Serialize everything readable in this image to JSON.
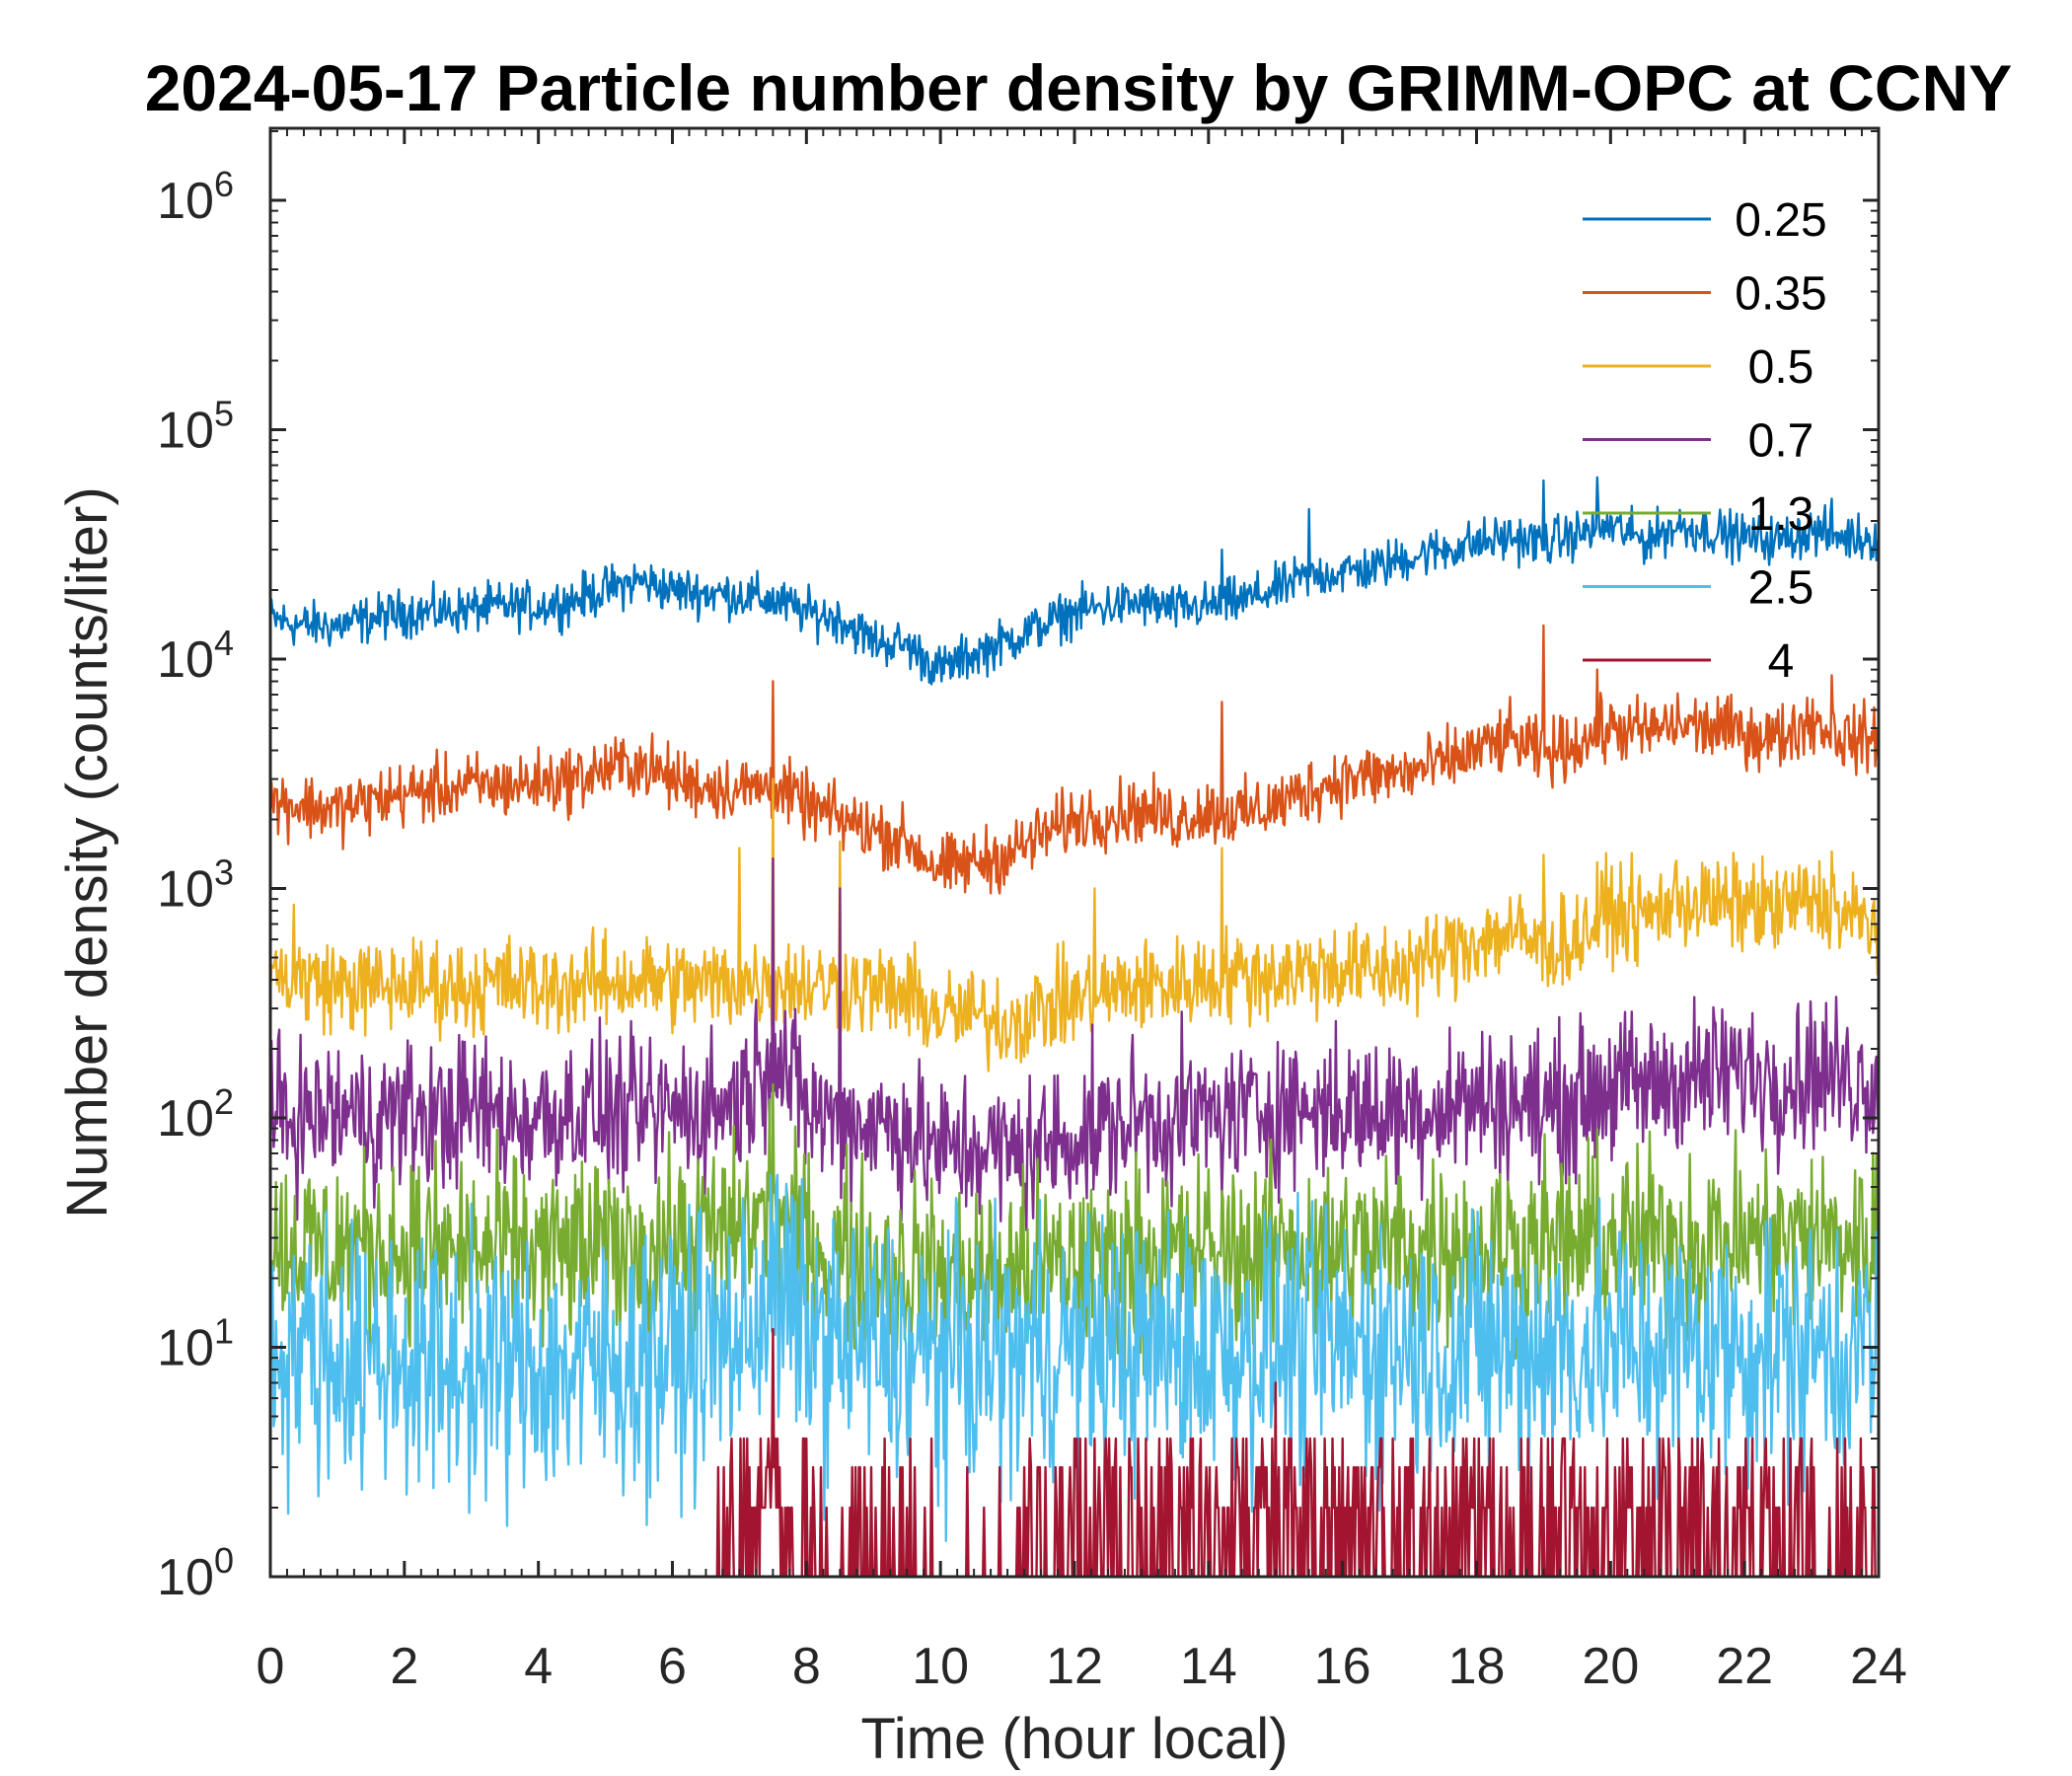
{
  "chart_data": {
    "type": "line",
    "title": "2024-05-17 Particle number density by GRIMM-OPC at CCNY",
    "xlabel": "Time (hour local)",
    "ylabel": "Number density (counts/liter)",
    "xscale": "linear",
    "yscale": "log",
    "xlim": [
      0,
      24
    ],
    "ylim": [
      1,
      2000000
    ],
    "xticks": [
      0,
      2,
      4,
      6,
      8,
      10,
      12,
      14,
      16,
      18,
      20,
      22,
      24
    ],
    "xtick_labels": [
      "0",
      "2",
      "4",
      "6",
      "8",
      "10",
      "12",
      "14",
      "16",
      "18",
      "20",
      "22",
      "24"
    ],
    "yticks": [
      1,
      10,
      100,
      1000,
      10000,
      100000,
      1000000
    ],
    "ytick_exponents": [
      "0",
      "1",
      "2",
      "3",
      "4",
      "5",
      "6"
    ],
    "ytick_base": "10",
    "grid": false,
    "legend_position": "top-right",
    "x": [
      0,
      0.5,
      1,
      1.5,
      2,
      2.5,
      3,
      3.5,
      4,
      4.5,
      5,
      5.5,
      6,
      6.5,
      7,
      7.5,
      8,
      8.5,
      9,
      9.5,
      10,
      10.5,
      11,
      11.5,
      12,
      12.5,
      13,
      13.5,
      14,
      14.5,
      15,
      15.5,
      16,
      16.5,
      17,
      17.5,
      18,
      18.5,
      19,
      19.5,
      20,
      20.5,
      21,
      21.5,
      22,
      22.5,
      23,
      23.5,
      24
    ],
    "series": [
      {
        "name": "0.25",
        "color": "#0072BD",
        "noise": 0.05,
        "spikes": [
          [
            14.2,
            30000
          ],
          [
            15.5,
            45000
          ],
          [
            19,
            60000
          ],
          [
            19.8,
            62000
          ],
          [
            23.3,
            50000
          ]
        ],
        "values": [
          15000,
          14000,
          14000,
          15000,
          16000,
          16000,
          16500,
          17000,
          17000,
          18000,
          20000,
          22000,
          20000,
          19500,
          19000,
          18000,
          16000,
          15000,
          12000,
          11500,
          9000,
          10500,
          12000,
          14000,
          16000,
          17000,
          17500,
          16500,
          17000,
          18000,
          20000,
          23000,
          24000,
          25000,
          28000,
          30000,
          32000,
          34000,
          32000,
          35000,
          38000,
          33000,
          38000,
          36000,
          34000,
          33000,
          36000,
          34000,
          34000
        ]
      },
      {
        "name": "0.35",
        "color": "#D95319",
        "noise": 0.07,
        "spikes": [
          [
            7.5,
            8000
          ],
          [
            14.2,
            6500
          ],
          [
            19,
            14000
          ],
          [
            19.8,
            9000
          ],
          [
            23.3,
            8500
          ]
        ],
        "values": [
          2400,
          2300,
          2200,
          2400,
          2600,
          2700,
          2800,
          2800,
          2900,
          3000,
          3300,
          3500,
          3000,
          2800,
          2700,
          2800,
          2300,
          2000,
          1800,
          1600,
          1200,
          1300,
          1400,
          1700,
          2000,
          2100,
          2200,
          2000,
          2200,
          2100,
          2300,
          2700,
          3000,
          3100,
          3200,
          3500,
          4000,
          4500,
          3800,
          4300,
          5000,
          4800,
          5200,
          5000,
          4800,
          4500,
          5500,
          4500,
          4500
        ]
      },
      {
        "name": "0.5",
        "color": "#EDB120",
        "noise": 0.1,
        "spikes": [
          [
            0.35,
            850
          ],
          [
            7,
            1500
          ],
          [
            7.5,
            3000
          ],
          [
            8.5,
            1600
          ],
          [
            12.3,
            1000
          ],
          [
            14.2,
            1500
          ],
          [
            19,
            1400
          ],
          [
            19.8,
            1300
          ],
          [
            23.3,
            1450
          ]
        ],
        "values": [
          420,
          400,
          380,
          370,
          380,
          380,
          370,
          390,
          370,
          380,
          390,
          400,
          390,
          380,
          390,
          400,
          380,
          380,
          360,
          340,
          280,
          280,
          260,
          300,
          330,
          350,
          380,
          380,
          410,
          420,
          420,
          440,
          450,
          430,
          460,
          520,
          600,
          650,
          550,
          600,
          800,
          750,
          900,
          850,
          850,
          800,
          900,
          750,
          700
        ]
      },
      {
        "name": "0.7",
        "color": "#7E2F8E",
        "noise": 0.16,
        "spikes": [
          [
            7.5,
            1350
          ],
          [
            8.5,
            1000
          ]
        ],
        "values": [
          100,
          100,
          105,
          100,
          105,
          100,
          110,
          100,
          100,
          110,
          105,
          100,
          110,
          110,
          120,
          200,
          110,
          100,
          95,
          90,
          70,
          75,
          70,
          75,
          85,
          90,
          100,
          100,
          100,
          105,
          110,
          110,
          110,
          105,
          110,
          115,
          120,
          120,
          110,
          120,
          140,
          135,
          150,
          150,
          160,
          150,
          160,
          150,
          145
        ]
      },
      {
        "name": "1.3",
        "color": "#77AC30",
        "noise": 0.2,
        "spikes": [
          [
            7.5,
            140
          ]
        ],
        "values": [
          28,
          28,
          27,
          27,
          27,
          26,
          26,
          26,
          26,
          26,
          26,
          27,
          28,
          30,
          32,
          40,
          28,
          25,
          23,
          22,
          20,
          20,
          21,
          22,
          23,
          24,
          25,
          25,
          26,
          26,
          27,
          27,
          27,
          27,
          28,
          28,
          28,
          28,
          28,
          28,
          29,
          29,
          29,
          29,
          30,
          29,
          30,
          29,
          29
        ]
      },
      {
        "name": "2.5",
        "color": "#4DBEEE",
        "noise": 0.28,
        "spikes": [
          [
            7.5,
            35
          ]
        ],
        "values": [
          10,
          10,
          9,
          9,
          9,
          8,
          8,
          8,
          8,
          8,
          8,
          9,
          9,
          10,
          11,
          18,
          12,
          10,
          10,
          9,
          9,
          9,
          9,
          10,
          10,
          10,
          10,
          10,
          10,
          10,
          10,
          10,
          10,
          10,
          10,
          10,
          10,
          10,
          10,
          10,
          10,
          10,
          10,
          10,
          10,
          10,
          10,
          10,
          10
        ]
      },
      {
        "name": "4",
        "color": "#A2142F",
        "noise": 0.35,
        "spikes": [
          [
            7.5,
            12
          ],
          [
            15,
            7
          ]
        ],
        "values": [
          1,
          1,
          1,
          1,
          1,
          1,
          1,
          1,
          1,
          1,
          1,
          1,
          1,
          1,
          1.5,
          2,
          1.5,
          1.2,
          1.5,
          1.5,
          1.2,
          1.2,
          1.3,
          1.5,
          1.5,
          1.5,
          1.6,
          1.6,
          1.7,
          1.7,
          1.8,
          1.8,
          1.7,
          1.6,
          1.5,
          1.6,
          1.8,
          1.7,
          1.5,
          1.6,
          1.8,
          1.7,
          1.6,
          1.5,
          1.5,
          1.5,
          1.5,
          1.5,
          1.4
        ]
      }
    ]
  }
}
